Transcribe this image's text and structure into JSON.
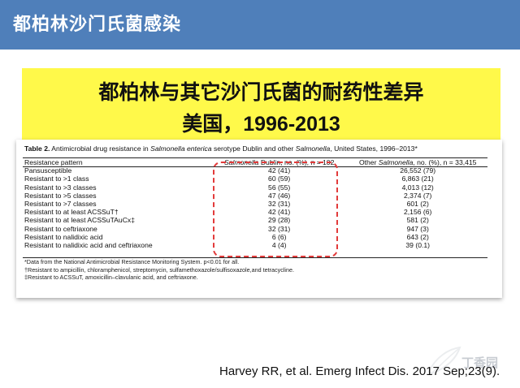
{
  "slide": {
    "title": "都柏林沙门氏菌感染",
    "banner": {
      "line1": "都柏林与其它沙门氏菌的耐药性差异",
      "line2": "美国，1996-2013"
    },
    "citation": "Harvey RR, et al. Emerg Infect Dis. 2017 Sep;23(9).",
    "watermark": "丁香园"
  },
  "table": {
    "caption": {
      "label": "Table 2.",
      "part1": " Antimicrobial drug resistance in ",
      "species": "Salmonella enterica",
      "part2": " serotype Dublin and other ",
      "genus": "Salmonella",
      "part3": ", United States, 1996–2013*"
    },
    "headers": {
      "pattern": "Resistance pattern",
      "dublin_italic": "Salmonella",
      "dublin_rest": " Dublin, no. (%), n = 102",
      "other_prefix": "Other ",
      "other_italic": "Salmonella",
      "other_rest": ", no. (%), n = 33,415"
    },
    "rows": [
      {
        "pattern": "Pansusceptible",
        "dublin": "42 (41)",
        "other": "26,552 (79)"
      },
      {
        "pattern": "Resistant to >1 class",
        "dublin": "60 (59)",
        "other": "6,863 (21)"
      },
      {
        "pattern": "Resistant to >3 classes",
        "dublin": "56 (55)",
        "other": "4,013 (12)"
      },
      {
        "pattern": "Resistant to >5 classes",
        "dublin": "47 (46)",
        "other": "2,374 (7)"
      },
      {
        "pattern": "Resistant to >7 classes",
        "dublin": "32 (31)",
        "other": "601 (2)"
      },
      {
        "pattern": "Resistant to at least ACSSuT†",
        "dublin": "42 (41)",
        "other": "2,156 (6)"
      },
      {
        "pattern": "Resistant to at least ACSSuTAuCx‡",
        "dublin": "29 (28)",
        "other": "581 (2)"
      },
      {
        "pattern": "Resistant to ceftriaxone",
        "dublin": "32 (31)",
        "other": "947 (3)"
      },
      {
        "pattern": "Resistant to nalidixic acid",
        "dublin": "6 (6)",
        "other": "643 (2)"
      },
      {
        "pattern": "Resistant to nalidixic acid and ceftriaxone",
        "dublin": "4 (4)",
        "other": "39 (0.1)"
      }
    ],
    "footnotes": [
      "*Data from the National Antimicrobial Resistance Monitoring System. p<0.01 for all.",
      "†Resistant to ampicillin, chloramphenicol, streptomycin, sulfamethoxazole/sulfisoxazole,and tetracycline.",
      "‡Resistant to ACSSuT, amoxicillin–clavulanic acid, and ceftriaxone."
    ]
  },
  "colors": {
    "header_bg": "#4f7fba",
    "banner_bg": "#fff94a",
    "highlight_dash": "#e23b3b"
  }
}
